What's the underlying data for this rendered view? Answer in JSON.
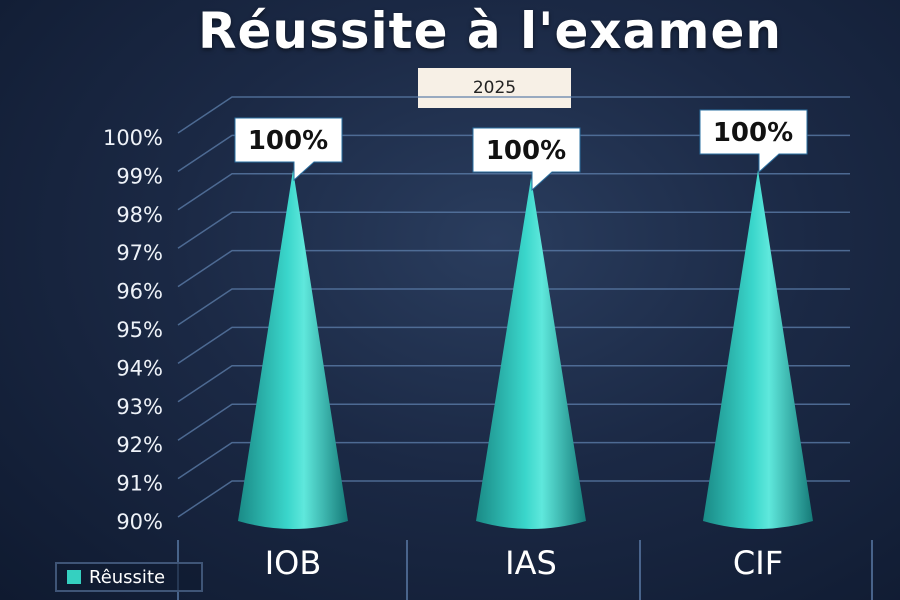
{
  "chart_data": {
    "type": "bar",
    "style": "3d-cone",
    "title": "Réussite à l'examen",
    "subtitle": "2025",
    "categories": [
      "IOB",
      "IAS",
      "CIF"
    ],
    "series": [
      {
        "name": "Rêussite",
        "values": [
          100,
          100,
          100
        ],
        "color": "#2cbcb4"
      }
    ],
    "data_labels": [
      "100%",
      "100%",
      "100%"
    ],
    "ylim": [
      90,
      100
    ],
    "yticks": [
      "90%",
      "91%",
      "92%",
      "93%",
      "94%",
      "95%",
      "96%",
      "97%",
      "98%",
      "99%",
      "100%"
    ],
    "grid": true,
    "legend": "bottom-left",
    "xlabel": "",
    "ylabel": ""
  }
}
